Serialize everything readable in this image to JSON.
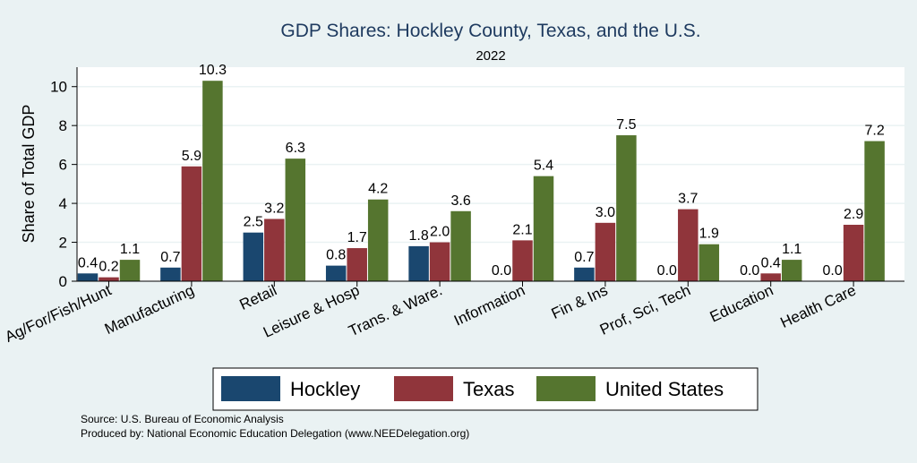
{
  "chart_data": {
    "type": "bar",
    "title": "GDP Shares: Hockley County, Texas, and the U.S.",
    "subtitle": "2022",
    "ylabel": "Share of Total GDP",
    "xlabel": "",
    "ylim": [
      0,
      11
    ],
    "yticks": [
      0,
      2,
      4,
      6,
      8,
      10
    ],
    "grid": true,
    "legend_position": "bottom",
    "categories": [
      "Ag/For/Fish/Hunt",
      "Manufacturing",
      "Retail",
      "Leisure & Hosp",
      "Trans. & Ware.",
      "Information",
      "Fin & Ins",
      "Prof, Sci, Tech",
      "Education",
      "Health Care"
    ],
    "series": [
      {
        "name": "Hockley",
        "color": "#1a476f",
        "values": [
          0.4,
          0.7,
          2.5,
          0.8,
          1.8,
          0.0,
          0.7,
          0.0,
          0.0,
          0.0
        ]
      },
      {
        "name": "Texas",
        "color": "#90353b",
        "values": [
          0.2,
          5.9,
          3.2,
          1.7,
          2.0,
          2.1,
          3.0,
          3.7,
          0.4,
          2.9
        ]
      },
      {
        "name": "United States",
        "color": "#55752f",
        "values": [
          1.1,
          10.3,
          6.3,
          4.2,
          3.6,
          5.4,
          7.5,
          1.9,
          1.1,
          7.2
        ]
      }
    ],
    "source_lines": [
      "Source: U.S. Bureau of Economic Analysis",
      "Produced by: National Economic Education Delegation (www.NEEDelegation.org)"
    ]
  }
}
